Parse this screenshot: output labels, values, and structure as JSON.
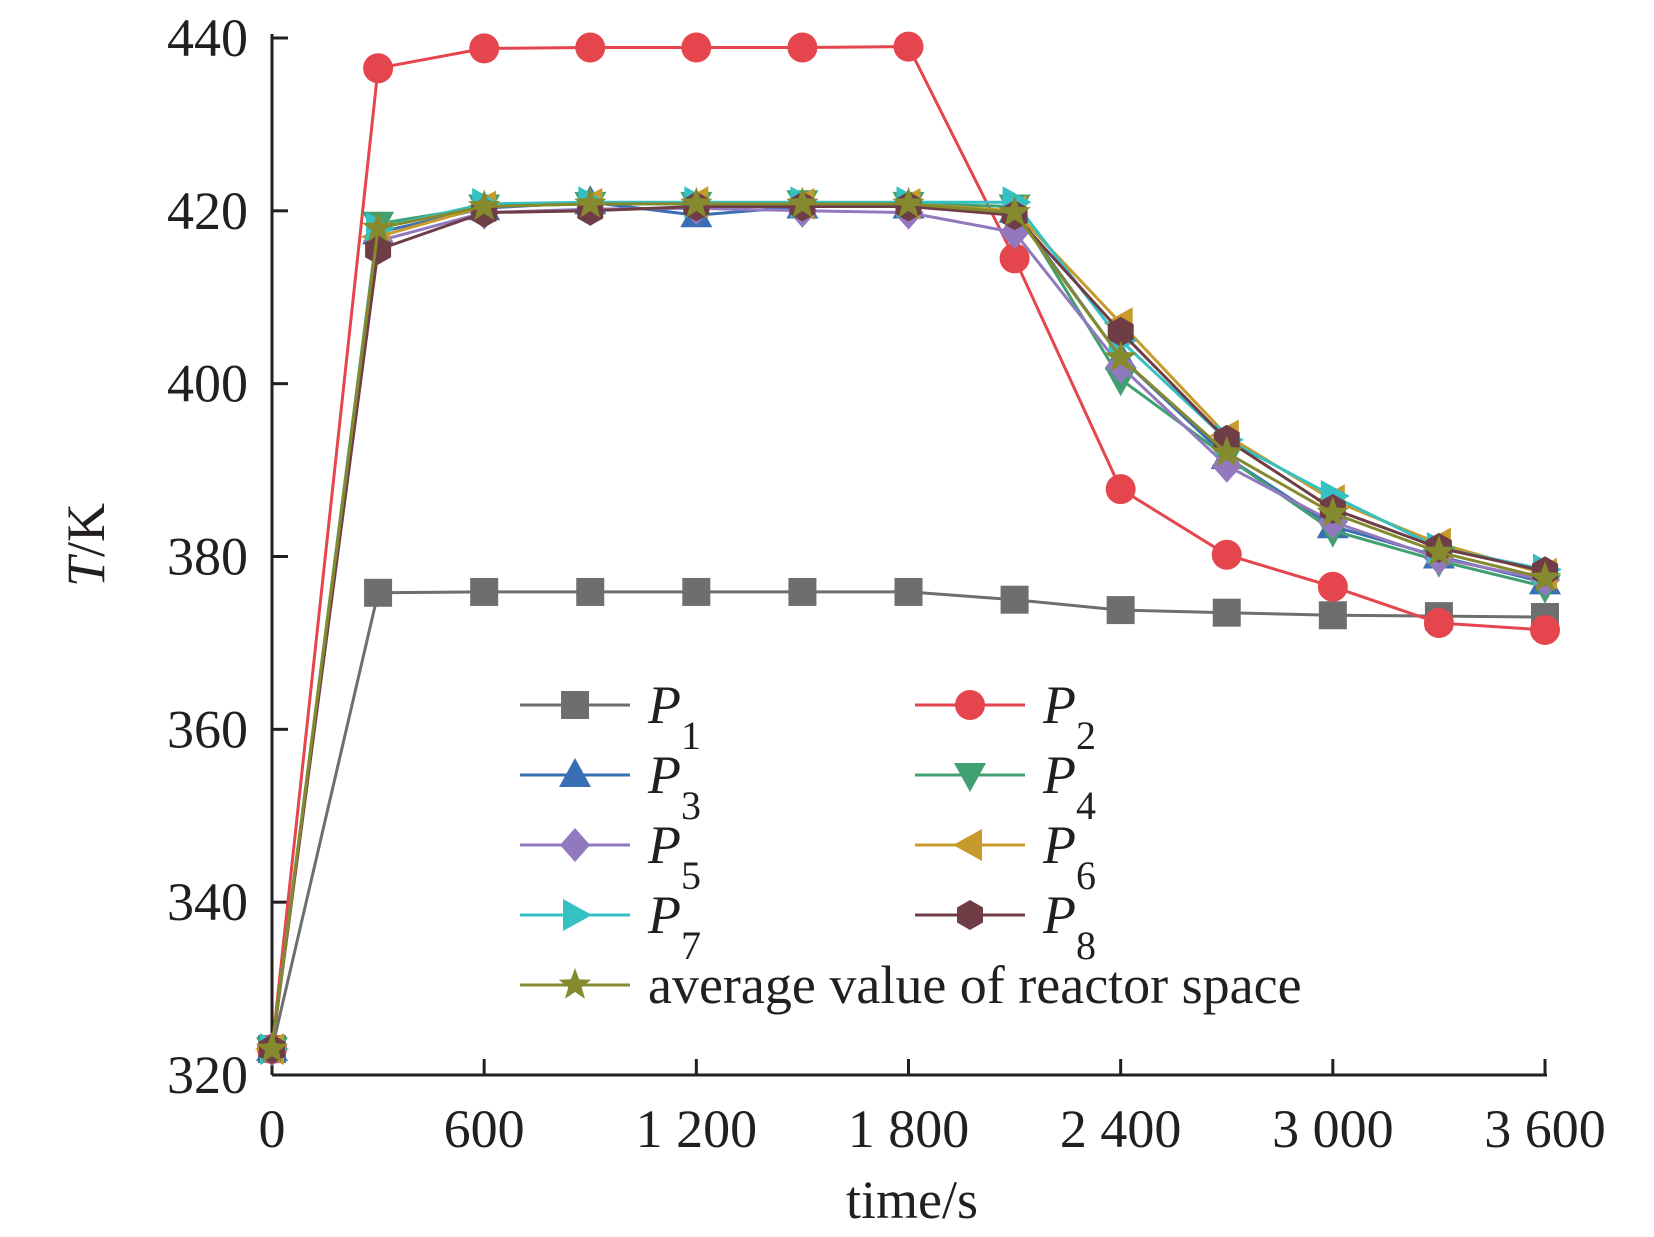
{
  "chart_data": {
    "type": "line",
    "title": "",
    "xlabel": "time/s",
    "ylabel_italic": "T",
    "ylabel_rest": "/K",
    "xlim": [
      0,
      3600
    ],
    "ylim": [
      320,
      440
    ],
    "x_ticks": [
      0,
      600,
      1200,
      1800,
      2400,
      3000,
      3600
    ],
    "x_tick_labels": [
      "0",
      "600",
      "1 200",
      "1 800",
      "2 400",
      "3 000",
      "3 600"
    ],
    "y_ticks": [
      320,
      340,
      360,
      380,
      400,
      420,
      440
    ],
    "y_tick_labels": [
      "320",
      "340",
      "360",
      "380",
      "400",
      "420",
      "440"
    ],
    "grid": false,
    "legend_position": "bottom-center, inside plot, two columns",
    "x": [
      0,
      300,
      600,
      900,
      1200,
      1500,
      1800,
      2100,
      2400,
      2700,
      3000,
      3300,
      3600
    ],
    "series": [
      {
        "name_base": "P",
        "name_sub": "1",
        "color": "#6d6e70",
        "marker": "square",
        "values": [
          323,
          375.8,
          375.9,
          375.9,
          375.9,
          375.9,
          375.9,
          375.0,
          373.8,
          373.5,
          373.2,
          373.1,
          373.0
        ]
      },
      {
        "name_base": "P",
        "name_sub": "2",
        "color": "#e5454d",
        "marker": "circle",
        "values": [
          323,
          436.5,
          438.8,
          438.9,
          438.9,
          438.9,
          439.0,
          414.5,
          387.8,
          380.2,
          376.5,
          372.3,
          371.5
        ]
      },
      {
        "name_base": "P",
        "name_sub": "3",
        "color": "#3a6eb5",
        "marker": "triangle-up",
        "values": [
          323,
          417.5,
          420.3,
          421.0,
          419.5,
          420.5,
          420.5,
          420.0,
          403.0,
          391.5,
          383.5,
          380.0,
          377.0
        ]
      },
      {
        "name_base": "P",
        "name_sub": "4",
        "color": "#41a071",
        "marker": "triangle-down",
        "values": [
          323,
          418.5,
          420.5,
          420.8,
          420.8,
          421.0,
          420.8,
          420.5,
          400.5,
          391.5,
          383.0,
          379.5,
          376.5
        ]
      },
      {
        "name_base": "P",
        "name_sub": "5",
        "color": "#9278be",
        "marker": "diamond",
        "values": [
          323,
          416.5,
          419.8,
          420.2,
          420.3,
          420.0,
          419.8,
          417.5,
          402.0,
          390.5,
          384.0,
          379.8,
          377.3
        ]
      },
      {
        "name_base": "P",
        "name_sub": "6",
        "color": "#c79a2c",
        "marker": "triangle-left",
        "values": [
          323,
          417.0,
          420.5,
          420.8,
          421.0,
          420.8,
          420.8,
          420.0,
          407.0,
          394.0,
          386.5,
          381.5,
          378.0
        ]
      },
      {
        "name_base": "P",
        "name_sub": "7",
        "color": "#35c0c4",
        "marker": "triangle-right",
        "values": [
          323,
          418.0,
          420.8,
          421.0,
          421.0,
          421.0,
          421.0,
          421.0,
          405.0,
          393.5,
          387.0,
          381.0,
          378.5
        ]
      },
      {
        "name_base": "P",
        "name_sub": "8",
        "color": "#6e3d45",
        "marker": "hexagon",
        "values": [
          323,
          415.5,
          419.8,
          420.0,
          420.5,
          420.5,
          420.5,
          419.5,
          406.0,
          393.5,
          385.5,
          381.0,
          378.3
        ]
      },
      {
        "name_text": "average value of reactor space",
        "color": "#868a2e",
        "marker": "star",
        "values": [
          323,
          418.0,
          420.5,
          420.8,
          420.8,
          420.8,
          420.8,
          419.8,
          403.0,
          392.0,
          385.0,
          380.5,
          377.5
        ]
      }
    ]
  }
}
